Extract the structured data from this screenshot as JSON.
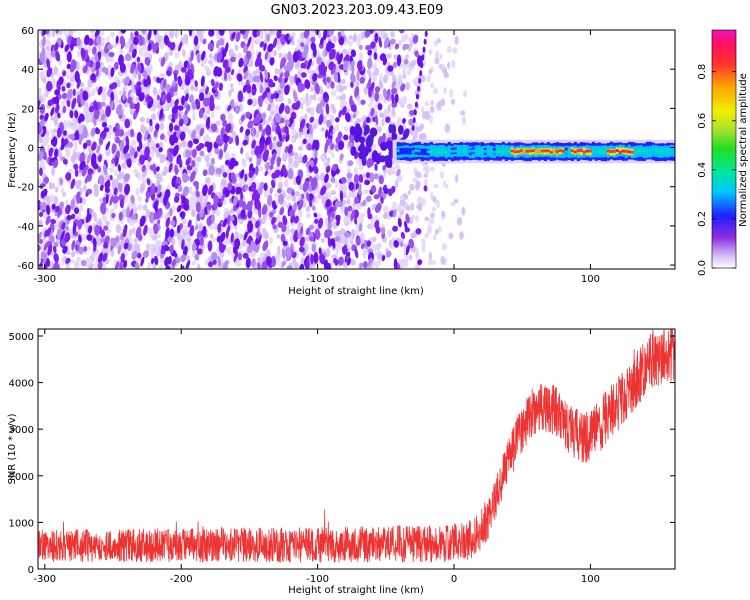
{
  "figure": {
    "title": "GN03.2023.203.09.43.E09"
  },
  "chart_data": [
    {
      "type": "heatmap",
      "xlabel": "Height of straight line (km)",
      "ylabel": "Frequency (Hz)",
      "xlim": [
        -305,
        162
      ],
      "ylim": [
        -62,
        60
      ],
      "xticks": [
        -300,
        -200,
        -100,
        0,
        100
      ],
      "yticks": [
        -60,
        -40,
        -20,
        0,
        20,
        40,
        60
      ],
      "grid": false,
      "colorbar": {
        "label": "Normalized spectral amplitude",
        "range": [
          0,
          0.97
        ],
        "ticks": [
          "0.0",
          "0.2",
          "0.4",
          "0.6",
          "0.8"
        ],
        "colormap": "gist_ncar-like (white-purple-blue-cyan-green-yellow-orange-red-magenta)"
      },
      "features": {
        "noise_region_x": [
          -305,
          0
        ],
        "signal_band_x": [
          -40,
          162
        ],
        "signal_band_center_hz": -2,
        "signal_band_halfwidth_hz": 3
      },
      "band_segments": [
        {
          "x0": -40,
          "x1": 162,
          "f": -2,
          "level": 0.22
        },
        {
          "x0": -20,
          "x1": 162,
          "f": -2,
          "level": 0.38
        },
        {
          "x0": 40,
          "x1": 80,
          "f": -2,
          "level": 0.8
        },
        {
          "x0": 85,
          "x1": 100,
          "f": -1,
          "level": 0.85
        },
        {
          "x0": 110,
          "x1": 130,
          "f": -2,
          "level": 0.85
        }
      ]
    },
    {
      "type": "line",
      "xlabel": "Height of straight line (km)",
      "ylabel": "SNR (10 * v/v)",
      "xlim": [
        -305,
        162
      ],
      "ylim": [
        0,
        5150
      ],
      "xticks": [
        -300,
        -200,
        -100,
        0,
        100
      ],
      "yticks": [
        0,
        1000,
        2000,
        3000,
        4000,
        5000
      ],
      "grid": false,
      "series_color": "#ee3333",
      "envelope": {
        "x": [
          -305,
          -250,
          -200,
          -150,
          -100,
          -50,
          0,
          15,
          25,
          35,
          45,
          55,
          65,
          75,
          85,
          95,
          105,
          115,
          125,
          135,
          145,
          155,
          162
        ],
        "y": [
          500,
          500,
          510,
          510,
          520,
          530,
          550,
          650,
          1100,
          1900,
          2700,
          3300,
          3500,
          3400,
          3000,
          2800,
          3000,
          3400,
          3700,
          4100,
          4500,
          4600,
          4700
        ]
      },
      "noise_amplitude": [
        {
          "x": -305,
          "amp": 350
        },
        {
          "x": 0,
          "amp": 400
        },
        {
          "x": 40,
          "amp": 500
        },
        {
          "x": 162,
          "amp": 650
        }
      ]
    }
  ]
}
